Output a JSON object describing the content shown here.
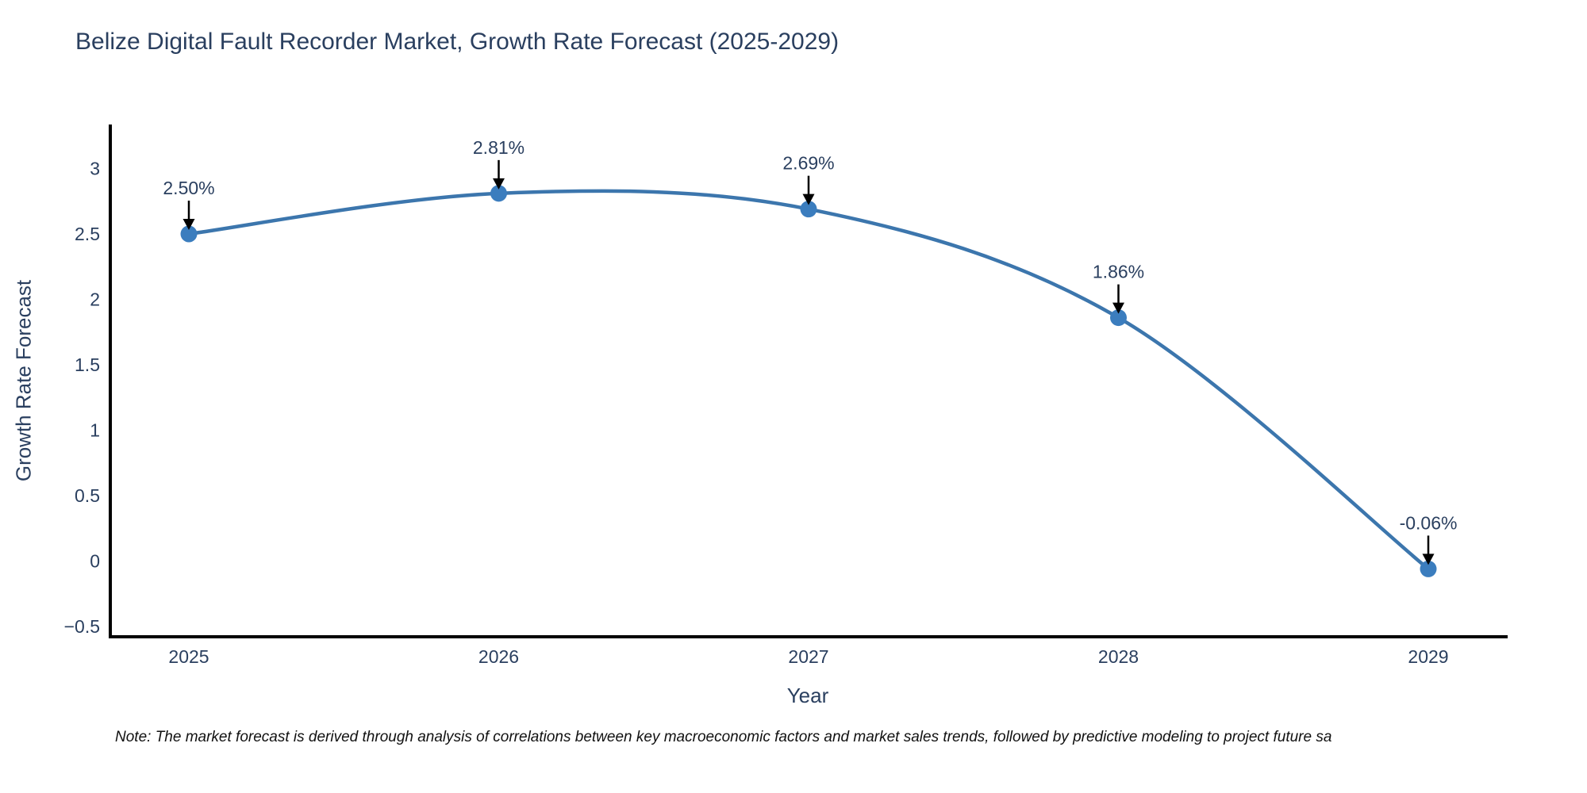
{
  "title": "Belize Digital Fault Recorder Market, Growth Rate Forecast (2025-2029)",
  "note": "Note: The market forecast is derived through analysis of correlations between key macroeconomic factors and market sales trends, followed by predictive modeling to project future sa",
  "chart_data": {
    "type": "line",
    "title": "Belize Digital Fault Recorder Market, Growth Rate Forecast (2025-2029)",
    "xlabel": "Year",
    "ylabel": "Growth Rate Forecast",
    "x": [
      2025,
      2026,
      2027,
      2028,
      2029
    ],
    "series": [
      {
        "name": "Growth Rate Forecast",
        "values": [
          2.5,
          2.81,
          2.69,
          1.86,
          -0.06
        ]
      }
    ],
    "point_labels": [
      "2.50%",
      "2.81%",
      "2.69%",
      "1.86%",
      "-0.06%"
    ],
    "yticks": [
      3,
      2.5,
      2,
      1.5,
      1,
      0.5,
      0,
      -0.5
    ],
    "ytick_labels": [
      "3",
      "2.5",
      "2",
      "1.5",
      "1",
      "0.5",
      "0",
      "−0.5"
    ],
    "xtick_labels": [
      "2025",
      "2026",
      "2027",
      "2028",
      "2029"
    ],
    "ylim": [
      -0.58,
      3.32
    ],
    "line_shape": "spline",
    "grid": false,
    "legend": "none",
    "colors": {
      "line": "#3c76ad",
      "marker": "#3b7dbe",
      "axis_line": "#000000",
      "text": "#2a3f5f",
      "annotation_arrow": "#000000",
      "note_text": "#111111",
      "background": "#ffffff"
    }
  }
}
